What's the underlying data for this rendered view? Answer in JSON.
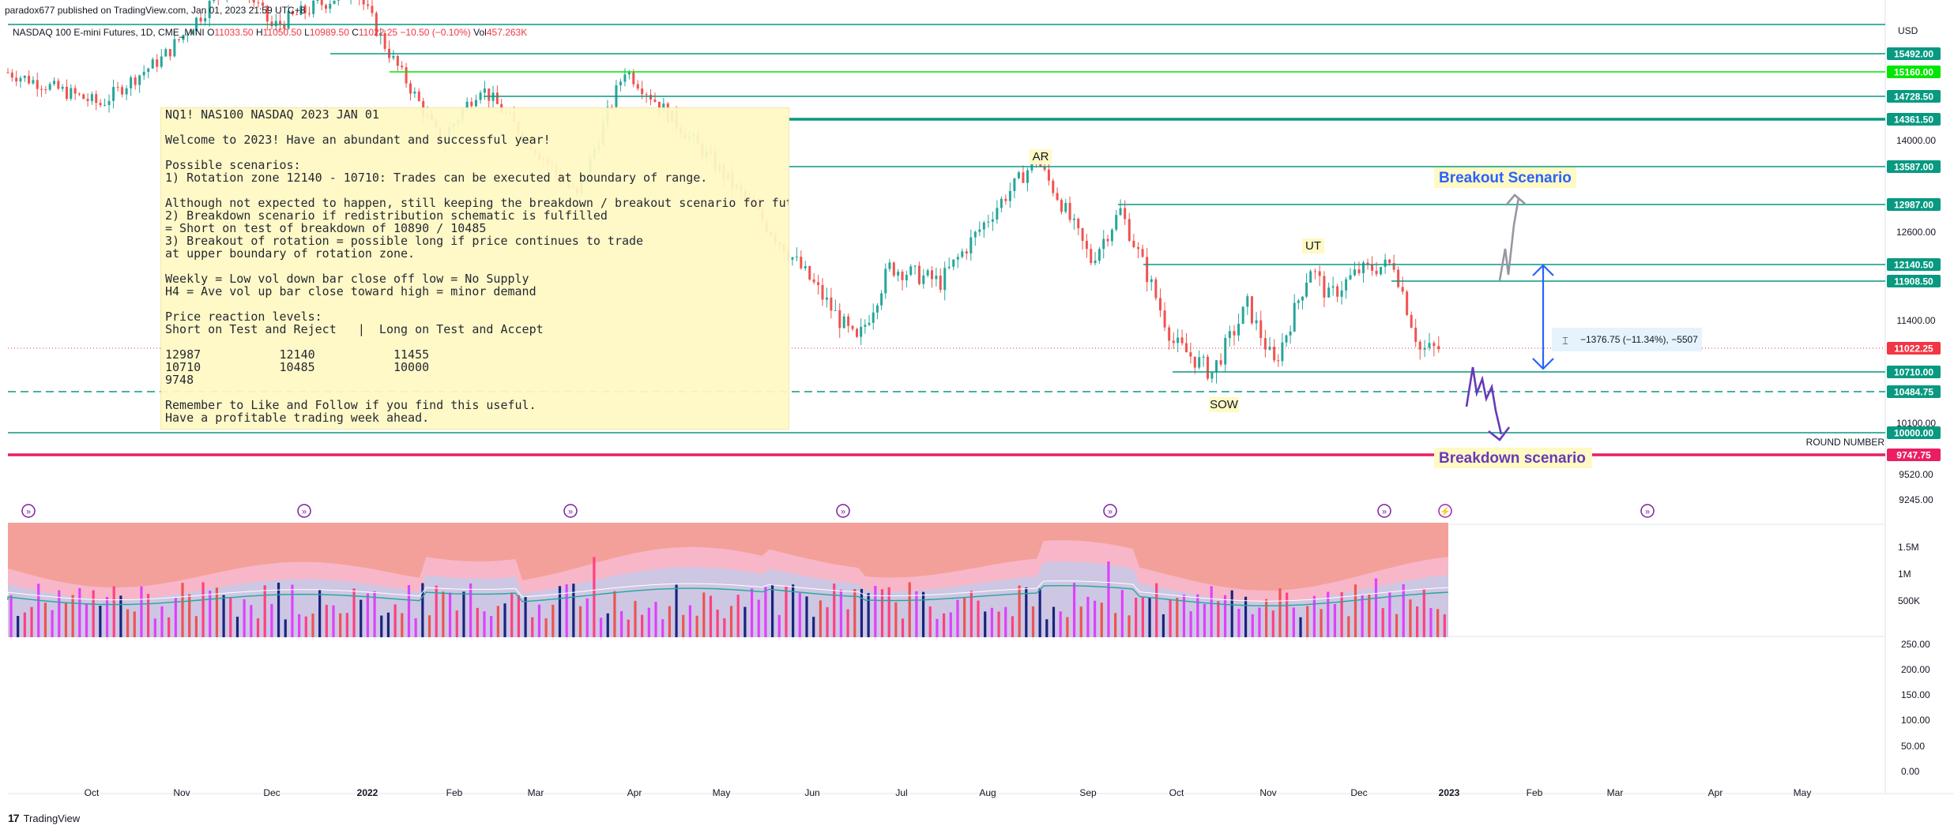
{
  "header": {
    "published": "paradox677 published on TradingView.com, Jan 01, 2023 21:59 UTC+8",
    "symbol": "NASDAQ 100 E-mini Futures, 1D, CME_MINI",
    "open_label": "O",
    "open": "11033.50",
    "high_label": "H",
    "high": "11050.50",
    "low_label": "L",
    "low": "10989.50",
    "close_label": "C",
    "close": "11022.25",
    "change": "−10.50 (−0.10%)",
    "vol_label": "Vol",
    "vol": "457.263K"
  },
  "currency": "USD",
  "note": {
    "lines": [
      "NQ1! NAS100 NASDAQ 2023 JAN 01",
      "",
      "Welcome to 2023! Have an abundant and successful year!",
      "",
      "Possible scenarios:",
      "1) Rotation zone 12140 - 10710: Trades can be executed at boundary of range.",
      "",
      "Although not expected to happen, still keeping the breakdown / breakout scenario for future reference:",
      "2) Breakdown scenario if redistribution schematic is fulfilled",
      "= Short on test of breakdown of 10890 / 10485",
      "3) Breakout of rotation = possible long if price continues to trade",
      "at upper boundary of rotation zone.",
      "",
      "Weekly = Low vol down bar close off low = No Supply",
      "H4 = Ave vol up bar close toward high = minor demand",
      "",
      "Price reaction levels:",
      "Short on Test and Reject   |  Long on Test and Accept",
      "",
      "12987           12140           11455",
      "10710           10485           10000",
      "9748",
      "",
      "Remember to Like and Follow if you find this useful.",
      "Have a profitable trading week ahead."
    ]
  },
  "colors": {
    "up": "#26a69a",
    "down": "#ef5350",
    "level_line": "#089981",
    "green_level": "#00e600",
    "pink_level": "#e91e63",
    "blue_arrow": "#2962ff",
    "grey_arrow": "#9598a1",
    "purple": "#673ab7",
    "price_tag": "#089981",
    "current_tag": "#f23645"
  },
  "labels": {
    "breakout": "Breakout Scenario",
    "breakdown": "Breakdown scenario",
    "round_number": "ROUND NUMBER",
    "ar": "AR",
    "ut": "UT",
    "sow": "SOW",
    "measure": "−1376.75 (−11.34%), −5507"
  },
  "brand": {
    "name": "TradingView",
    "logo": "17"
  },
  "chart_data": [
    {
      "type": "candlestick",
      "title": "NASDAQ 100 E-mini Futures, 1D, CME_MINI",
      "x_ticks": [
        "Oct",
        "Nov",
        "Dec",
        "2022",
        "Feb",
        "Mar",
        "Apr",
        "May",
        "Jun",
        "Jul",
        "Aug",
        "Sep",
        "Oct",
        "Nov",
        "Dec",
        "2023",
        "Feb",
        "Mar",
        "Apr",
        "May"
      ],
      "y_ticks": [
        "14000.00",
        "12600.00",
        "11400.00",
        "10100.00",
        "9520.00",
        "9245.00"
      ],
      "price_levels": [
        {
          "value": "15492.00",
          "style": "solid"
        },
        {
          "value": "15160.00",
          "style": "green"
        },
        {
          "value": "14728.50",
          "style": "solid"
        },
        {
          "value": "14361.50",
          "style": "thick"
        },
        {
          "value": "13587.00",
          "style": "solid"
        },
        {
          "value": "12987.00",
          "style": "solid"
        },
        {
          "value": "12140.50",
          "style": "solid"
        },
        {
          "value": "11908.50",
          "style": "solid"
        },
        {
          "value": "11022.25",
          "style": "current"
        },
        {
          "value": "10710.00",
          "style": "solid"
        },
        {
          "value": "10484.75",
          "style": "dashed"
        },
        {
          "value": "10000.00",
          "style": "solid"
        },
        {
          "value": "9747.75",
          "style": "pink"
        }
      ],
      "visible_path": [
        {
          "date": "2021-09-20",
          "close": 15150
        },
        {
          "date": "2021-10-04",
          "close": 14600
        },
        {
          "date": "2021-10-25",
          "close": 15400
        },
        {
          "date": "2021-11-19",
          "close": 16700
        },
        {
          "date": "2021-12-01",
          "close": 15900
        },
        {
          "date": "2021-12-28",
          "close": 16500
        },
        {
          "date": "2022-01-27",
          "close": 14000
        },
        {
          "date": "2022-02-10",
          "close": 14900
        },
        {
          "date": "2022-03-14",
          "close": 13100
        },
        {
          "date": "2022-03-29",
          "close": 15200
        },
        {
          "date": "2022-06-16",
          "close": 11100
        },
        {
          "date": "2022-06-27",
          "close": 12100
        },
        {
          "date": "2022-07-15",
          "close": 11900
        },
        {
          "date": "2022-08-16",
          "close": 13700
        },
        {
          "date": "2022-09-02",
          "close": 12200
        },
        {
          "date": "2022-09-12",
          "close": 12900
        },
        {
          "date": "2022-09-30",
          "close": 11100
        },
        {
          "date": "2022-10-13",
          "close": 10700
        },
        {
          "date": "2022-10-25",
          "close": 11600
        },
        {
          "date": "2022-11-03",
          "close": 10800
        },
        {
          "date": "2022-11-15",
          "close": 12100
        },
        {
          "date": "2022-11-21",
          "close": 11700
        },
        {
          "date": "2022-12-01",
          "close": 12050
        },
        {
          "date": "2022-12-13",
          "close": 12150
        },
        {
          "date": "2022-12-22",
          "close": 11000
        },
        {
          "date": "2022-12-30",
          "close": 11022.25
        }
      ]
    },
    {
      "type": "bar",
      "title": "Volume",
      "y_ticks": [
        "1.5M",
        "1M",
        "500K"
      ]
    },
    {
      "type": "line",
      "title": "Oscillator",
      "y_ticks": [
        "250.00",
        "200.00",
        "150.00",
        "100.00",
        "50.00",
        "0.00"
      ]
    }
  ]
}
